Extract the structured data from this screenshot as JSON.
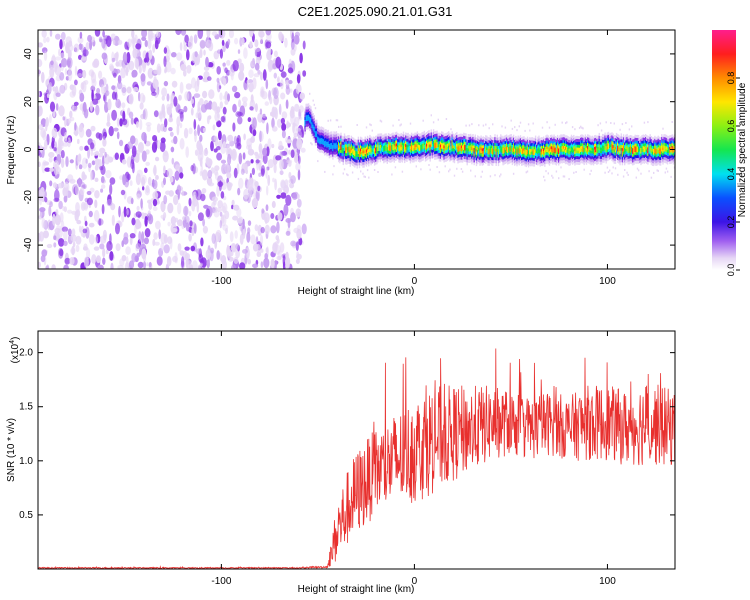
{
  "title": "C2E1.2025.090.21.01.G31",
  "colors": {
    "snr_line": "#e8302e",
    "colormap": [
      "#ffffff",
      "#e6d6f5",
      "#c39af0",
      "#8a35e6",
      "#4b1be0",
      "#0a1ef0",
      "#0aa0ff",
      "#00f0e6",
      "#14e64b",
      "#a0f014",
      "#ffe600",
      "#ff8c00",
      "#ff1e1e",
      "#ff1e8c"
    ]
  },
  "chart_data": [
    {
      "type": "heatmap",
      "xlabel": "Height of straight line (km)",
      "ylabel": "Frequency (Hz)",
      "xlim": [
        -195,
        135
      ],
      "ylim": [
        -50,
        50
      ],
      "xticks": [
        -100,
        0,
        100
      ],
      "yticks": [
        -40,
        -20,
        0,
        20,
        40
      ],
      "colorbar": {
        "label": "Normalized spectral amplitude",
        "range": [
          0,
          1
        ],
        "ticks": [
          "0.0",
          "0.2",
          "0.4",
          "0.6",
          "0.8"
        ]
      },
      "regions": {
        "noise": {
          "x_range": [
            -195,
            -57
          ],
          "freq_range": [
            -50,
            50
          ],
          "amplitude": [
            0.0,
            0.15
          ]
        },
        "signal_ridge": {
          "x_range": [
            -57,
            135
          ],
          "center_freq_hz": 0,
          "bandwidth_hz": 8,
          "peak_amplitude": 0.95
        }
      },
      "ridge_center": {
        "x": [
          -57,
          -55,
          -52,
          -50,
          -45,
          -40,
          -35,
          -30,
          -20,
          -10,
          0,
          10,
          20,
          30,
          40,
          50,
          60,
          70,
          80,
          90,
          100,
          110,
          120,
          135
        ],
        "freq": [
          12,
          14,
          8,
          4,
          2,
          1,
          0,
          -1,
          0,
          1,
          1,
          2,
          1,
          0,
          0,
          0,
          -1,
          0,
          0,
          0,
          1,
          0,
          0,
          0
        ]
      }
    },
    {
      "type": "line",
      "xlabel": "Height of straight line (km)",
      "ylabel": "SNR (10 * v/v)",
      "y_exponent_label": "(x10",
      "y_exponent": "4",
      "xlim": [
        -195,
        135
      ],
      "ylim": [
        0,
        2.2
      ],
      "xticks": [
        -100,
        0,
        100
      ],
      "yticks": [
        "0.5",
        "1.0",
        "1.5",
        "2.0"
      ],
      "series": [
        {
          "x": [
            -195,
            -150,
            -100,
            -60,
            -45,
            -40,
            -35,
            -30,
            -25,
            -20,
            -15,
            -10,
            -5,
            0,
            5,
            10,
            20,
            30,
            40,
            50,
            60,
            70,
            80,
            90,
            100,
            110,
            120,
            135
          ],
          "y": [
            0.01,
            0.01,
            0.01,
            0.01,
            0.02,
            0.35,
            0.55,
            0.7,
            0.8,
            0.9,
            0.95,
            1.0,
            1.05,
            1.1,
            1.15,
            1.2,
            1.25,
            1.3,
            1.35,
            1.35,
            1.3,
            1.35,
            1.3,
            1.35,
            1.35,
            1.3,
            1.35,
            1.3
          ],
          "spread": [
            0.005,
            0.005,
            0.005,
            0.005,
            0.01,
            0.3,
            0.35,
            0.4,
            0.4,
            0.4,
            0.4,
            0.45,
            0.45,
            0.5,
            0.5,
            0.5,
            0.45,
            0.4,
            0.35,
            0.3,
            0.3,
            0.3,
            0.3,
            0.35,
            0.35,
            0.35,
            0.4,
            0.35
          ]
        }
      ]
    }
  ]
}
